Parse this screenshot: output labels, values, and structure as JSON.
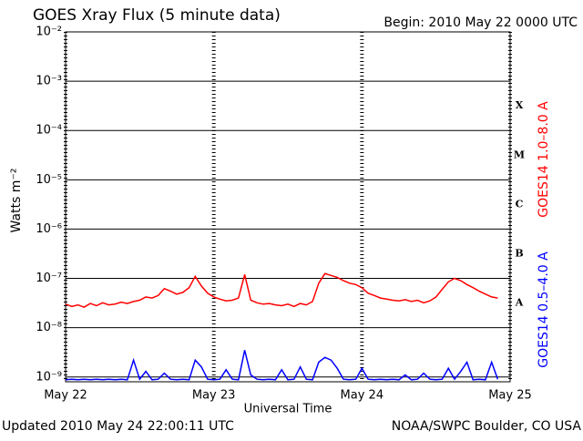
{
  "chart_data": {
    "type": "line",
    "title": "GOES Xray Flux (5 minute data)",
    "subtitle": "Begin:  2010 May 22 0000 UTC",
    "x_label": "Universal Time",
    "y_label": "Watts m⁻²",
    "footer_left": "Updated 2010 May 24 22:00:11 UTC",
    "footer_right": "NOAA/SWPC Boulder, CO USA",
    "log_y": true,
    "grid": true,
    "xlim": [
      0,
      72
    ],
    "xticks": [
      {
        "value": 0,
        "label": "May 22"
      },
      {
        "value": 24,
        "label": "May 23"
      },
      {
        "value": 48,
        "label": "May 24"
      },
      {
        "value": 72,
        "label": "May 25"
      }
    ],
    "ylim": [
      8e-10,
      0.01
    ],
    "yticks": [
      {
        "value": 0.01,
        "label": "10⁻²"
      },
      {
        "value": 0.001,
        "label": "10⁻³"
      },
      {
        "value": 0.0001,
        "label": "10⁻⁴"
      },
      {
        "value": 1e-05,
        "label": "10⁻⁵"
      },
      {
        "value": 1e-06,
        "label": "10⁻⁶"
      },
      {
        "value": 1e-07,
        "label": "10⁻⁷"
      },
      {
        "value": 1e-08,
        "label": "10⁻⁸"
      },
      {
        "value": 1e-09,
        "label": "10⁻⁹"
      }
    ],
    "flare_classes": [
      {
        "value": 0.0001,
        "label": "X"
      },
      {
        "value": 1e-05,
        "label": "M"
      },
      {
        "value": 1e-06,
        "label": "C"
      },
      {
        "value": 1e-07,
        "label": "B"
      },
      {
        "value": 1e-08,
        "label": "A"
      }
    ],
    "x": [
      0,
      1,
      2,
      3,
      4,
      5,
      6,
      7,
      8,
      9,
      10,
      11,
      12,
      13,
      14,
      15,
      16,
      17,
      18,
      19,
      20,
      21,
      22,
      23,
      24,
      25,
      26,
      27,
      28,
      29,
      30,
      31,
      32,
      33,
      34,
      35,
      36,
      37,
      38,
      39,
      40,
      41,
      42,
      43,
      44,
      45,
      46,
      47,
      48,
      49,
      50,
      51,
      52,
      53,
      54,
      55,
      56,
      57,
      58,
      59,
      60,
      61,
      62,
      63,
      64,
      65,
      66,
      67,
      68,
      69,
      70
    ],
    "series": [
      {
        "name": "GOES14 1.0–8.0 A",
        "color": "#ff0000",
        "values": [
          3e-08,
          2.7e-08,
          2.9e-08,
          2.6e-08,
          3.1e-08,
          2.8e-08,
          3.2e-08,
          2.9e-08,
          3e-08,
          3.3e-08,
          3.1e-08,
          3.4e-08,
          3.6e-08,
          4.2e-08,
          4e-08,
          4.5e-08,
          6.2e-08,
          5.5e-08,
          4.8e-08,
          5.2e-08,
          6.5e-08,
          1.1e-07,
          7e-08,
          5e-08,
          4.2e-08,
          3.8e-08,
          3.5e-08,
          3.6e-08,
          4e-08,
          1.2e-07,
          3.6e-08,
          3.2e-08,
          3e-08,
          3.1e-08,
          2.9e-08,
          2.8e-08,
          3e-08,
          2.7e-08,
          3.1e-08,
          2.9e-08,
          3.4e-08,
          8e-08,
          1.25e-07,
          1.15e-07,
          1.05e-07,
          9e-08,
          8e-08,
          7.5e-08,
          6.5e-08,
          5e-08,
          4.5e-08,
          4e-08,
          3.8e-08,
          3.6e-08,
          3.5e-08,
          3.7e-08,
          3.4e-08,
          3.6e-08,
          3.2e-08,
          3.5e-08,
          4.2e-08,
          6e-08,
          8.5e-08,
          1e-07,
          9e-08,
          7.5e-08,
          6.5e-08,
          5.5e-08,
          4.8e-08,
          4.2e-08,
          4e-08
        ]
      },
      {
        "name": "GOES14 0.5–4.0 A",
        "color": "#0000ff",
        "values": [
          8.8e-10,
          9e-10,
          8.8e-10,
          9e-10,
          8.8e-10,
          9e-10,
          8.8e-10,
          9e-10,
          8.8e-10,
          9e-10,
          8.8e-10,
          2.2e-09,
          9e-10,
          1.3e-09,
          8.8e-10,
          9e-10,
          1.2e-09,
          9e-10,
          8.8e-10,
          9e-10,
          8.8e-10,
          2.2e-09,
          1.6e-09,
          9e-10,
          8.8e-10,
          9e-10,
          1.4e-09,
          9e-10,
          8.8e-10,
          3.5e-09,
          1.1e-09,
          9e-10,
          8.8e-10,
          9e-10,
          8.8e-10,
          1.4e-09,
          8.8e-10,
          9e-10,
          1.6e-09,
          9e-10,
          8.8e-10,
          2e-09,
          2.5e-09,
          2.2e-09,
          1.5e-09,
          9e-10,
          8.8e-10,
          9e-10,
          1.5e-09,
          9e-10,
          8.8e-10,
          9e-10,
          8.8e-10,
          9e-10,
          8.8e-10,
          1.1e-09,
          8.8e-10,
          9e-10,
          1.2e-09,
          9e-10,
          8.8e-10,
          9e-10,
          1.5e-09,
          9e-10,
          1.3e-09,
          2e-09,
          8.8e-10,
          9e-10,
          8.8e-10,
          2e-09,
          9e-10
        ]
      }
    ]
  }
}
